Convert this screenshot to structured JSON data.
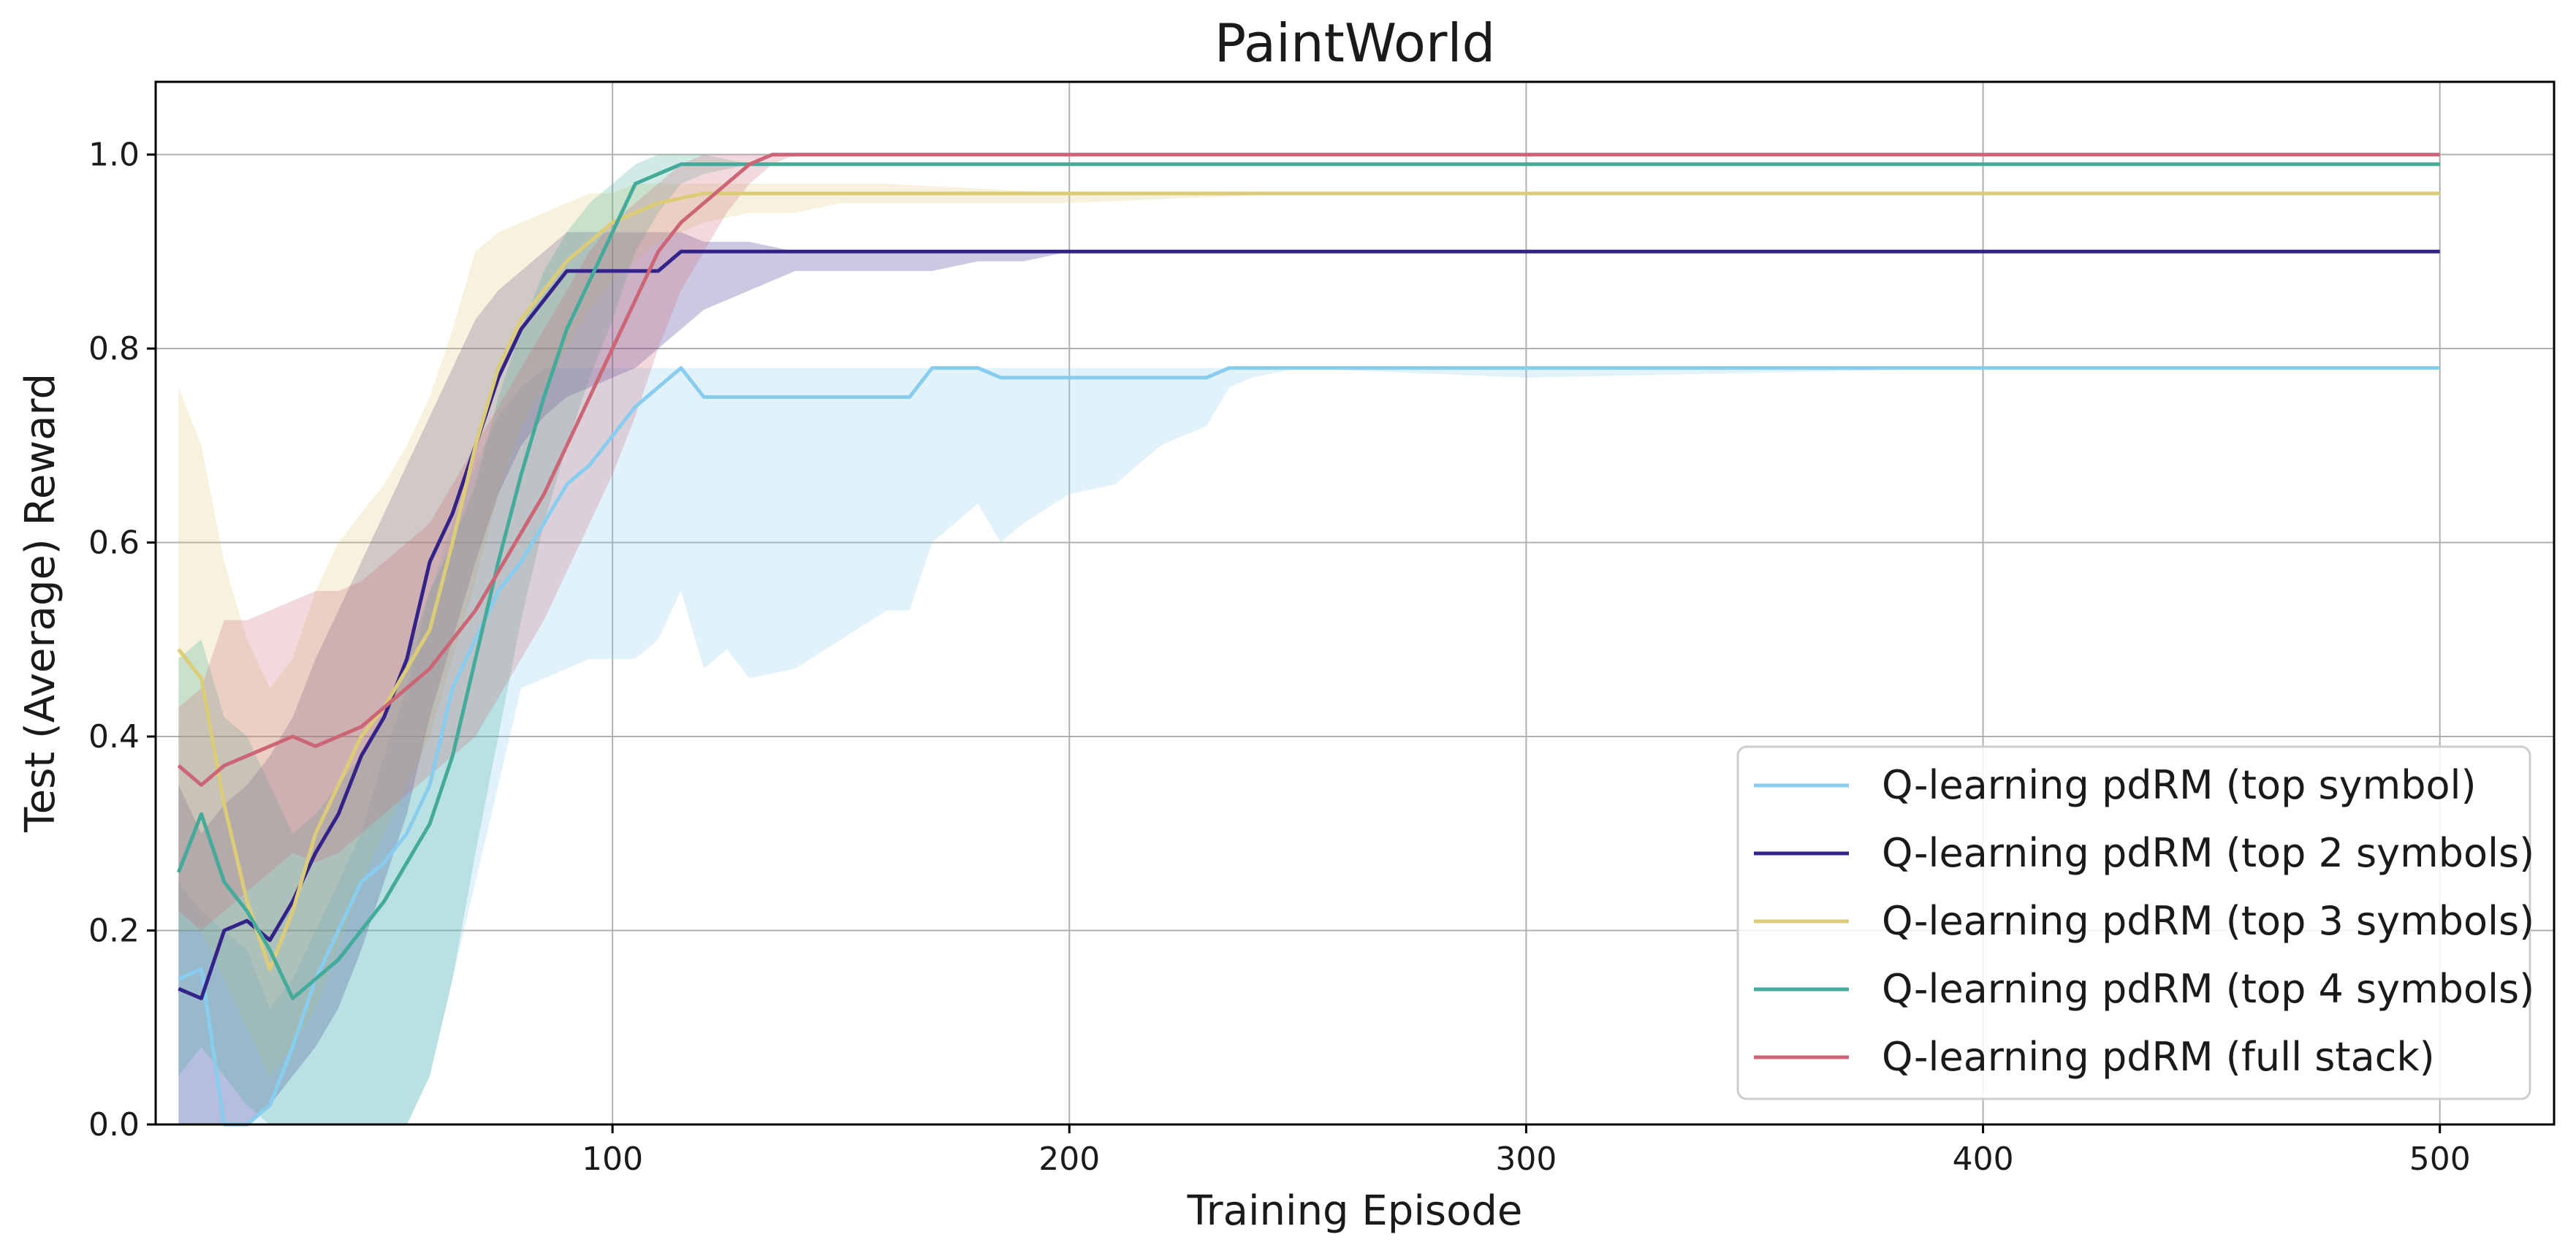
{
  "chart_data": {
    "type": "line",
    "title": "PaintWorld",
    "xlabel": "Training Episode",
    "ylabel": "Test (Average) Reward",
    "xlim": [
      0,
      525
    ],
    "ylim": [
      0,
      1.075
    ],
    "xticks": [
      100,
      200,
      300,
      400,
      500
    ],
    "yticks": [
      0.0,
      0.2,
      0.4,
      0.6,
      0.8,
      1.0
    ],
    "xtick_labels": [
      "100",
      "200",
      "300",
      "400",
      "500"
    ],
    "ytick_labels": [
      "0.0",
      "0.2",
      "0.4",
      "0.6",
      "0.8",
      "1.0"
    ],
    "grid": true,
    "legend_position": "lower-right",
    "series": [
      {
        "name": "Q-learning pdRM (top symbol)",
        "color": "#88CCEE",
        "x": [
          5,
          10,
          15,
          20,
          25,
          30,
          35,
          40,
          45,
          50,
          55,
          60,
          65,
          70,
          75,
          80,
          85,
          90,
          95,
          100,
          105,
          110,
          115,
          120,
          125,
          130,
          140,
          150,
          160,
          165,
          170,
          175,
          180,
          185,
          190,
          200,
          210,
          220,
          230,
          235,
          240,
          250,
          300,
          400,
          500
        ],
        "y": [
          0.15,
          0.16,
          0.0,
          0.0,
          0.02,
          0.08,
          0.15,
          0.2,
          0.25,
          0.27,
          0.3,
          0.35,
          0.45,
          0.5,
          0.55,
          0.58,
          0.62,
          0.66,
          0.68,
          0.71,
          0.74,
          0.76,
          0.78,
          0.75,
          0.75,
          0.75,
          0.75,
          0.75,
          0.75,
          0.75,
          0.78,
          0.78,
          0.78,
          0.77,
          0.77,
          0.77,
          0.77,
          0.77,
          0.77,
          0.78,
          0.78,
          0.78,
          0.78,
          0.78,
          0.78
        ],
        "lower": [
          0.0,
          0.0,
          0.0,
          0.0,
          0.0,
          0.0,
          0.0,
          0.0,
          0.0,
          0.0,
          0.0,
          0.05,
          0.15,
          0.25,
          0.35,
          0.45,
          0.46,
          0.47,
          0.48,
          0.48,
          0.48,
          0.5,
          0.55,
          0.47,
          0.49,
          0.46,
          0.47,
          0.5,
          0.53,
          0.53,
          0.6,
          0.62,
          0.64,
          0.6,
          0.62,
          0.65,
          0.66,
          0.7,
          0.72,
          0.76,
          0.77,
          0.78,
          0.77,
          0.78,
          0.78
        ],
        "upper": [
          0.25,
          0.22,
          0.2,
          0.18,
          0.12,
          0.15,
          0.2,
          0.25,
          0.3,
          0.38,
          0.45,
          0.55,
          0.62,
          0.68,
          0.73,
          0.76,
          0.78,
          0.78,
          0.78,
          0.78,
          0.78,
          0.78,
          0.78,
          0.78,
          0.78,
          0.78,
          0.78,
          0.78,
          0.78,
          0.78,
          0.78,
          0.78,
          0.78,
          0.78,
          0.78,
          0.78,
          0.78,
          0.78,
          0.78,
          0.78,
          0.78,
          0.78,
          0.78,
          0.78,
          0.78
        ]
      },
      {
        "name": "Q-learning pdRM (top 2 symbols)",
        "color": "#332288",
        "x": [
          5,
          10,
          15,
          20,
          25,
          30,
          35,
          40,
          45,
          50,
          55,
          60,
          65,
          70,
          75,
          80,
          85,
          90,
          95,
          100,
          105,
          110,
          115,
          120,
          130,
          140,
          150,
          160,
          170,
          180,
          190,
          200,
          250,
          300,
          400,
          500
        ],
        "y": [
          0.14,
          0.13,
          0.2,
          0.21,
          0.19,
          0.23,
          0.28,
          0.32,
          0.38,
          0.42,
          0.48,
          0.58,
          0.63,
          0.7,
          0.77,
          0.82,
          0.85,
          0.88,
          0.88,
          0.88,
          0.88,
          0.88,
          0.9,
          0.9,
          0.9,
          0.9,
          0.9,
          0.9,
          0.9,
          0.9,
          0.9,
          0.9,
          0.9,
          0.9,
          0.9,
          0.9
        ],
        "lower": [
          0.0,
          0.0,
          0.0,
          0.0,
          0.02,
          0.05,
          0.08,
          0.12,
          0.18,
          0.25,
          0.32,
          0.42,
          0.5,
          0.58,
          0.65,
          0.7,
          0.73,
          0.75,
          0.76,
          0.77,
          0.78,
          0.8,
          0.82,
          0.84,
          0.86,
          0.88,
          0.88,
          0.88,
          0.88,
          0.89,
          0.89,
          0.9,
          0.9,
          0.9,
          0.9,
          0.9
        ],
        "upper": [
          0.35,
          0.3,
          0.33,
          0.35,
          0.38,
          0.42,
          0.48,
          0.53,
          0.58,
          0.63,
          0.68,
          0.73,
          0.78,
          0.83,
          0.86,
          0.88,
          0.9,
          0.92,
          0.92,
          0.92,
          0.92,
          0.92,
          0.92,
          0.91,
          0.91,
          0.9,
          0.9,
          0.9,
          0.9,
          0.9,
          0.9,
          0.9,
          0.9,
          0.9,
          0.9,
          0.9
        ]
      },
      {
        "name": "Q-learning pdRM (top 3 symbols)",
        "color": "#DDCC77",
        "x": [
          5,
          10,
          15,
          20,
          25,
          30,
          35,
          40,
          45,
          50,
          55,
          60,
          65,
          70,
          75,
          80,
          85,
          90,
          95,
          100,
          105,
          110,
          120,
          130,
          140,
          150,
          160,
          200,
          250,
          300,
          400,
          500
        ],
        "y": [
          0.49,
          0.46,
          0.33,
          0.23,
          0.16,
          0.22,
          0.3,
          0.35,
          0.4,
          0.43,
          0.47,
          0.51,
          0.6,
          0.7,
          0.78,
          0.83,
          0.86,
          0.89,
          0.91,
          0.93,
          0.94,
          0.95,
          0.96,
          0.96,
          0.96,
          0.96,
          0.96,
          0.96,
          0.96,
          0.96,
          0.96,
          0.96
        ],
        "lower": [
          0.2,
          0.2,
          0.15,
          0.1,
          0.05,
          0.08,
          0.12,
          0.18,
          0.25,
          0.3,
          0.35,
          0.4,
          0.48,
          0.56,
          0.65,
          0.72,
          0.76,
          0.8,
          0.84,
          0.87,
          0.89,
          0.91,
          0.93,
          0.94,
          0.94,
          0.95,
          0.95,
          0.95,
          0.96,
          0.96,
          0.96,
          0.96
        ],
        "upper": [
          0.76,
          0.7,
          0.58,
          0.5,
          0.45,
          0.48,
          0.55,
          0.6,
          0.63,
          0.66,
          0.7,
          0.75,
          0.82,
          0.9,
          0.92,
          0.93,
          0.94,
          0.95,
          0.96,
          0.96,
          0.97,
          0.97,
          0.97,
          0.97,
          0.97,
          0.97,
          0.97,
          0.96,
          0.96,
          0.96,
          0.96,
          0.96
        ]
      },
      {
        "name": "Q-learning pdRM (top 4 symbols)",
        "color": "#44AA99",
        "x": [
          5,
          10,
          15,
          20,
          25,
          30,
          35,
          40,
          45,
          50,
          55,
          60,
          65,
          70,
          75,
          80,
          85,
          90,
          95,
          100,
          105,
          110,
          115,
          120,
          130,
          150,
          200,
          300,
          400,
          500
        ],
        "y": [
          0.26,
          0.32,
          0.25,
          0.22,
          0.18,
          0.13,
          0.15,
          0.17,
          0.2,
          0.23,
          0.27,
          0.31,
          0.38,
          0.48,
          0.58,
          0.67,
          0.75,
          0.82,
          0.87,
          0.92,
          0.97,
          0.98,
          0.99,
          0.99,
          0.99,
          0.99,
          0.99,
          0.99,
          0.99,
          0.99
        ],
        "lower": [
          0.05,
          0.08,
          0.05,
          0.02,
          0.0,
          0.0,
          0.0,
          0.0,
          0.0,
          0.0,
          0.0,
          0.05,
          0.15,
          0.28,
          0.4,
          0.52,
          0.62,
          0.7,
          0.77,
          0.83,
          0.9,
          0.94,
          0.97,
          0.98,
          0.99,
          0.99,
          0.99,
          0.99,
          0.99,
          0.99
        ],
        "upper": [
          0.48,
          0.5,
          0.42,
          0.4,
          0.35,
          0.3,
          0.32,
          0.35,
          0.38,
          0.42,
          0.48,
          0.55,
          0.6,
          0.66,
          0.75,
          0.82,
          0.88,
          0.92,
          0.95,
          0.97,
          0.99,
          1.0,
          1.0,
          1.0,
          0.99,
          0.99,
          0.99,
          0.99,
          0.99,
          0.99
        ]
      },
      {
        "name": "Q-learning pdRM (full stack)",
        "color": "#CC6677",
        "x": [
          5,
          10,
          15,
          20,
          25,
          30,
          35,
          40,
          45,
          50,
          55,
          60,
          65,
          70,
          75,
          80,
          85,
          90,
          95,
          100,
          105,
          110,
          115,
          120,
          125,
          130,
          135,
          140,
          150,
          200,
          300,
          400,
          500
        ],
        "y": [
          0.37,
          0.35,
          0.37,
          0.38,
          0.39,
          0.4,
          0.39,
          0.4,
          0.41,
          0.43,
          0.45,
          0.47,
          0.5,
          0.53,
          0.57,
          0.61,
          0.65,
          0.7,
          0.75,
          0.8,
          0.85,
          0.9,
          0.93,
          0.95,
          0.97,
          0.99,
          1.0,
          1.0,
          1.0,
          1.0,
          1.0,
          1.0,
          1.0
        ],
        "lower": [
          0.22,
          0.2,
          0.22,
          0.24,
          0.26,
          0.28,
          0.27,
          0.28,
          0.3,
          0.32,
          0.34,
          0.36,
          0.38,
          0.4,
          0.44,
          0.48,
          0.52,
          0.57,
          0.62,
          0.67,
          0.73,
          0.8,
          0.86,
          0.9,
          0.94,
          0.97,
          0.99,
          1.0,
          1.0,
          1.0,
          1.0,
          1.0,
          1.0
        ],
        "upper": [
          0.43,
          0.45,
          0.52,
          0.52,
          0.53,
          0.54,
          0.55,
          0.55,
          0.56,
          0.58,
          0.6,
          0.62,
          0.66,
          0.7,
          0.74,
          0.78,
          0.82,
          0.86,
          0.9,
          0.93,
          0.95,
          0.97,
          0.99,
          1.0,
          1.0,
          1.0,
          1.0,
          1.0,
          1.0,
          1.0,
          1.0,
          1.0,
          1.0
        ]
      }
    ]
  }
}
